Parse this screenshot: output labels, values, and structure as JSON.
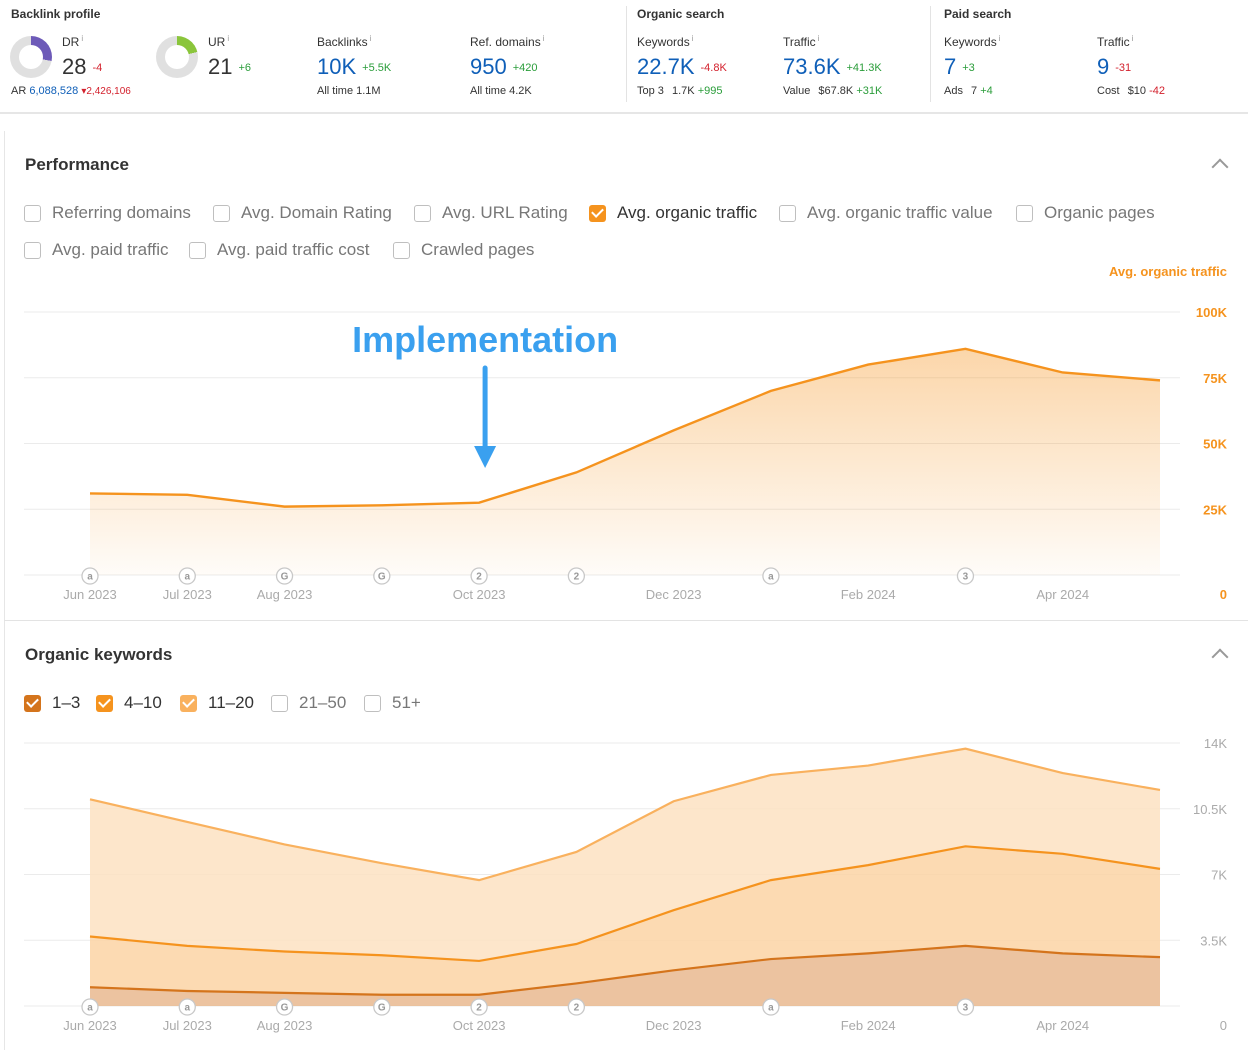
{
  "backlink_profile": {
    "title": "Backlink profile",
    "dr": {
      "label": "DR",
      "value": "28",
      "delta": "-4",
      "ring_fraction": 0.28,
      "ring_color": "#6d5ab8"
    },
    "ar": {
      "label": "AR",
      "value": "6,088,528",
      "delta": "2,426,106"
    },
    "ur": {
      "label": "UR",
      "value": "21",
      "delta": "+6",
      "ring_fraction": 0.21,
      "ring_color": "#8ac53b"
    },
    "backlinks": {
      "label": "Backlinks",
      "value": "10K",
      "delta": "+5.5K",
      "sub": "All time  1.1M"
    },
    "ref_domains": {
      "label": "Ref. domains",
      "value": "950",
      "delta": "+420",
      "sub": "All time  4.2K"
    }
  },
  "organic_search": {
    "title": "Organic search",
    "keywords": {
      "label": "Keywords",
      "value": "22.7K",
      "delta": "-4.8K",
      "sub_label": "Top 3",
      "sub_value": "1.7K",
      "sub_delta": "+995"
    },
    "traffic": {
      "label": "Traffic",
      "value": "73.6K",
      "delta": "+41.3K",
      "sub_label": "Value",
      "sub_value": "$67.8K",
      "sub_delta": "+31K"
    }
  },
  "paid_search": {
    "title": "Paid search",
    "keywords": {
      "label": "Keywords",
      "value": "7",
      "delta": "+3",
      "sub_label": "Ads",
      "sub_value": "7",
      "sub_delta": "+4"
    },
    "traffic": {
      "label": "Traffic",
      "value": "9",
      "delta": "-31",
      "sub_label": "Cost",
      "sub_value": "$10",
      "sub_delta": "-42"
    }
  },
  "performance": {
    "title": "Performance",
    "checkboxes": [
      {
        "label": "Referring domains",
        "checked": false
      },
      {
        "label": "Avg. Domain Rating",
        "checked": false
      },
      {
        "label": "Avg. URL Rating",
        "checked": false
      },
      {
        "label": "Avg. organic traffic",
        "checked": true
      },
      {
        "label": "Avg. organic traffic value",
        "checked": false
      },
      {
        "label": "Organic pages",
        "checked": false
      },
      {
        "label": "Avg. paid traffic",
        "checked": false
      },
      {
        "label": "Avg. paid traffic cost",
        "checked": false
      },
      {
        "label": "Crawled pages",
        "checked": false
      }
    ],
    "annotation": "Implementation"
  },
  "organic_keywords": {
    "title": "Organic keywords",
    "checkboxes": [
      {
        "label": "1–3",
        "checked": true,
        "color": "#d4741c"
      },
      {
        "label": "4–10",
        "checked": true,
        "color": "#f5931e"
      },
      {
        "label": "11–20",
        "checked": true,
        "color": "#f9b15e"
      },
      {
        "label": "21–50",
        "checked": false
      },
      {
        "label": "51+",
        "checked": false
      }
    ]
  },
  "chart_data": [
    {
      "type": "area",
      "series": [
        {
          "name": "Avg. organic traffic",
          "color": "#f5931e",
          "x": [
            "2023-06-01",
            "2023-07-01",
            "2023-08-01",
            "2023-09-01",
            "2023-10-01",
            "2023-11-01",
            "2023-12-01",
            "2024-01-01",
            "2024-02-01",
            "2024-03-01",
            "2024-04-01",
            "2024-05-01"
          ],
          "values": [
            31000,
            30500,
            26000,
            26500,
            27500,
            39000,
            55000,
            70000,
            80000,
            86000,
            77000,
            74000
          ]
        }
      ],
      "ylabel": "Avg. organic traffic",
      "ylim": [
        0,
        100000
      ],
      "y_ticks": [
        {
          "v": 0,
          "label": "0"
        },
        {
          "v": 25000,
          "label": "25K"
        },
        {
          "v": 50000,
          "label": "50K"
        },
        {
          "v": 75000,
          "label": "75K"
        },
        {
          "v": 100000,
          "label": "100K"
        }
      ],
      "x_tick_labels": [
        {
          "x": "2023-06-01",
          "label": "Jun 2023"
        },
        {
          "x": "2023-07-01",
          "label": "Jul 2023"
        },
        {
          "x": "2023-08-01",
          "label": "Aug 2023"
        },
        {
          "x": "2023-10-01",
          "label": "Oct 2023"
        },
        {
          "x": "2023-12-01",
          "label": "Dec 2023"
        },
        {
          "x": "2024-02-01",
          "label": "Feb 2024"
        },
        {
          "x": "2024-04-01",
          "label": "Apr 2024"
        }
      ],
      "markers": [
        {
          "x": "2023-06-01",
          "label": "a"
        },
        {
          "x": "2023-07-01",
          "label": "a"
        },
        {
          "x": "2023-08-01",
          "label": "G"
        },
        {
          "x": "2023-09-01",
          "label": "G"
        },
        {
          "x": "2023-10-01",
          "label": "2"
        },
        {
          "x": "2023-11-01",
          "label": "2"
        },
        {
          "x": "2024-01-01",
          "label": "a"
        },
        {
          "x": "2024-03-01",
          "label": "3"
        }
      ],
      "annotation": {
        "text": "Implementation",
        "x": "2023-10-01"
      },
      "grid": true
    },
    {
      "type": "area",
      "stacked": true,
      "series": [
        {
          "name": "1–3",
          "color": "#d4741c",
          "x": [
            "2023-06-01",
            "2023-07-01",
            "2023-08-01",
            "2023-09-01",
            "2023-10-01",
            "2023-11-01",
            "2023-12-01",
            "2024-01-01",
            "2024-02-01",
            "2024-03-01",
            "2024-04-01",
            "2024-05-01"
          ],
          "values": [
            1000,
            800,
            700,
            600,
            600,
            1200,
            1900,
            2500,
            2800,
            3200,
            2800,
            2600
          ]
        },
        {
          "name": "4–10",
          "color": "#f5931e",
          "x": [
            "2023-06-01",
            "2023-07-01",
            "2023-08-01",
            "2023-09-01",
            "2023-10-01",
            "2023-11-01",
            "2023-12-01",
            "2024-01-01",
            "2024-02-01",
            "2024-03-01",
            "2024-04-01",
            "2024-05-01"
          ],
          "values": [
            2700,
            2400,
            2200,
            2100,
            1800,
            2100,
            3200,
            4200,
            4700,
            5300,
            5300,
            4700
          ]
        },
        {
          "name": "11–20",
          "color": "#f9b15e",
          "x": [
            "2023-06-01",
            "2023-07-01",
            "2023-08-01",
            "2023-09-01",
            "2023-10-01",
            "2023-11-01",
            "2023-12-01",
            "2024-01-01",
            "2024-02-01",
            "2024-03-01",
            "2024-04-01",
            "2024-05-01"
          ],
          "values": [
            7300,
            6600,
            5700,
            4900,
            4300,
            4900,
            5800,
            5600,
            5300,
            5200,
            4300,
            4200
          ]
        }
      ],
      "ylim": [
        0,
        14000
      ],
      "y_ticks": [
        {
          "v": 0,
          "label": "0"
        },
        {
          "v": 3500,
          "label": "3.5K"
        },
        {
          "v": 7000,
          "label": "7K"
        },
        {
          "v": 10500,
          "label": "10.5K"
        },
        {
          "v": 14000,
          "label": "14K"
        }
      ],
      "x_tick_labels": [
        {
          "x": "2023-06-01",
          "label": "Jun 2023"
        },
        {
          "x": "2023-07-01",
          "label": "Jul 2023"
        },
        {
          "x": "2023-08-01",
          "label": "Aug 2023"
        },
        {
          "x": "2023-10-01",
          "label": "Oct 2023"
        },
        {
          "x": "2023-12-01",
          "label": "Dec 2023"
        },
        {
          "x": "2024-02-01",
          "label": "Feb 2024"
        },
        {
          "x": "2024-04-01",
          "label": "Apr 2024"
        }
      ],
      "markers": [
        {
          "x": "2023-06-01",
          "label": "a"
        },
        {
          "x": "2023-07-01",
          "label": "a"
        },
        {
          "x": "2023-08-01",
          "label": "G"
        },
        {
          "x": "2023-09-01",
          "label": "G"
        },
        {
          "x": "2023-10-01",
          "label": "2"
        },
        {
          "x": "2023-11-01",
          "label": "2"
        },
        {
          "x": "2024-01-01",
          "label": "a"
        },
        {
          "x": "2024-03-01",
          "label": "3"
        }
      ],
      "grid": true
    }
  ]
}
